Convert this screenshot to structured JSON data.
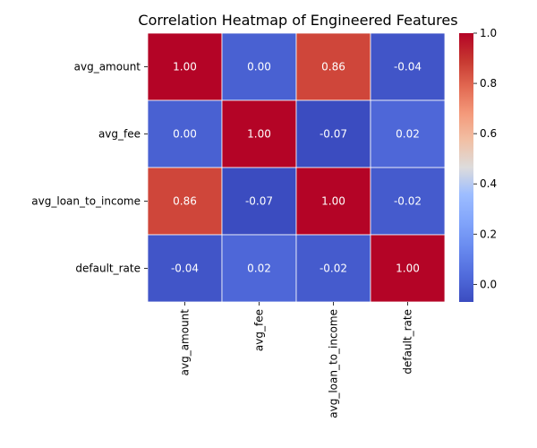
{
  "chart_data": {
    "type": "heatmap",
    "title": "Correlation Heatmap of Engineered Features",
    "rows": [
      "avg_amount",
      "avg_fee",
      "avg_loan_to_income",
      "default_rate"
    ],
    "columns": [
      "avg_amount",
      "avg_fee",
      "avg_loan_to_income",
      "default_rate"
    ],
    "values": [
      [
        1.0,
        0.0,
        0.86,
        -0.04
      ],
      [
        0.0,
        1.0,
        -0.07,
        0.02
      ],
      [
        0.86,
        -0.07,
        1.0,
        -0.02
      ],
      [
        -0.04,
        0.02,
        -0.02,
        1.0
      ]
    ],
    "value_format": "0.00",
    "colormap": "coolwarm",
    "colorbar": {
      "range": [
        -0.07,
        1.0
      ],
      "ticks": [
        0.0,
        0.2,
        0.4,
        0.6,
        0.8,
        1.0
      ],
      "tick_labels": [
        "0.0",
        "0.2",
        "0.4",
        "0.6",
        "0.8",
        "1.0"
      ],
      "position": "right"
    },
    "grid": true,
    "xlabel": "",
    "ylabel": ""
  }
}
